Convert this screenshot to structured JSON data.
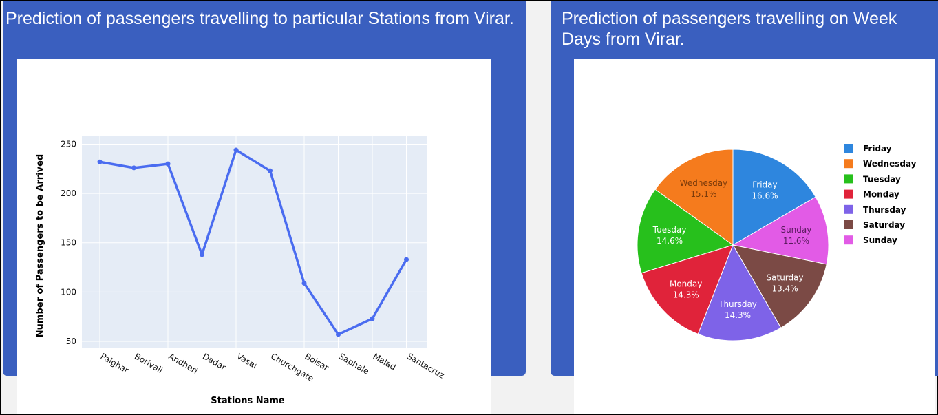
{
  "cards": {
    "left": {
      "title": "Prediction of passengers travelling to particular Stations from Virar."
    },
    "right": {
      "title": "Prediction of passengers travelling on Week Days from Virar."
    }
  },
  "chart_data": [
    {
      "type": "line",
      "title": "",
      "xlabel": "Stations Name",
      "ylabel": "Number of Passengers to be Arrived",
      "categories": [
        "Palghar",
        "Borivali",
        "Andheri",
        "Dadar",
        "Vasai",
        "Churchgate",
        "Boisar",
        "Saphale",
        "Malad",
        "Santacruz"
      ],
      "values": [
        232,
        226,
        230,
        138,
        244,
        223,
        109,
        57,
        73,
        133
      ],
      "yticks": [
        50,
        100,
        150,
        200,
        250
      ],
      "ylim": [
        43,
        258
      ],
      "grid": true,
      "colors": {
        "line": "#4a6cf0",
        "plot_bg": "#e5ecf6",
        "grid": "#ffffff"
      }
    },
    {
      "type": "pie",
      "title": "",
      "legend_position": "right",
      "slices": [
        {
          "label": "Friday",
          "percent_label": "16.6%",
          "value": 16.6,
          "color": "#2e86de",
          "text_color": "#ffffff"
        },
        {
          "label": "Sunday",
          "percent_label": "11.6%",
          "value": 11.6,
          "color": "#e25be6",
          "text_color": "#5a1a5e"
        },
        {
          "label": "Saturday",
          "percent_label": "13.4%",
          "value": 13.4,
          "color": "#7b4a45",
          "text_color": "#ffffff"
        },
        {
          "label": "Thursday",
          "percent_label": "14.3%",
          "value": 14.3,
          "color": "#7e63e8",
          "text_color": "#ffffff"
        },
        {
          "label": "Monday",
          "percent_label": "14.3%",
          "value": 14.3,
          "color": "#e0233a",
          "text_color": "#ffffff"
        },
        {
          "label": "Tuesday",
          "percent_label": "14.6%",
          "value": 14.6,
          "color": "#27c01c",
          "text_color": "#ffffff"
        },
        {
          "label": "Wednesday",
          "percent_label": "15.1%",
          "value": 15.1,
          "color": "#f57b1d",
          "text_color": "#7a3a0a"
        }
      ],
      "legend": [
        {
          "label": "Friday",
          "color": "#2e86de"
        },
        {
          "label": "Wednesday",
          "color": "#f57b1d"
        },
        {
          "label": "Tuesday",
          "color": "#27c01c"
        },
        {
          "label": "Monday",
          "color": "#e0233a"
        },
        {
          "label": "Thursday",
          "color": "#7e63e8"
        },
        {
          "label": "Saturday",
          "color": "#7b4a45"
        },
        {
          "label": "Sunday",
          "color": "#e25be6"
        }
      ]
    }
  ]
}
